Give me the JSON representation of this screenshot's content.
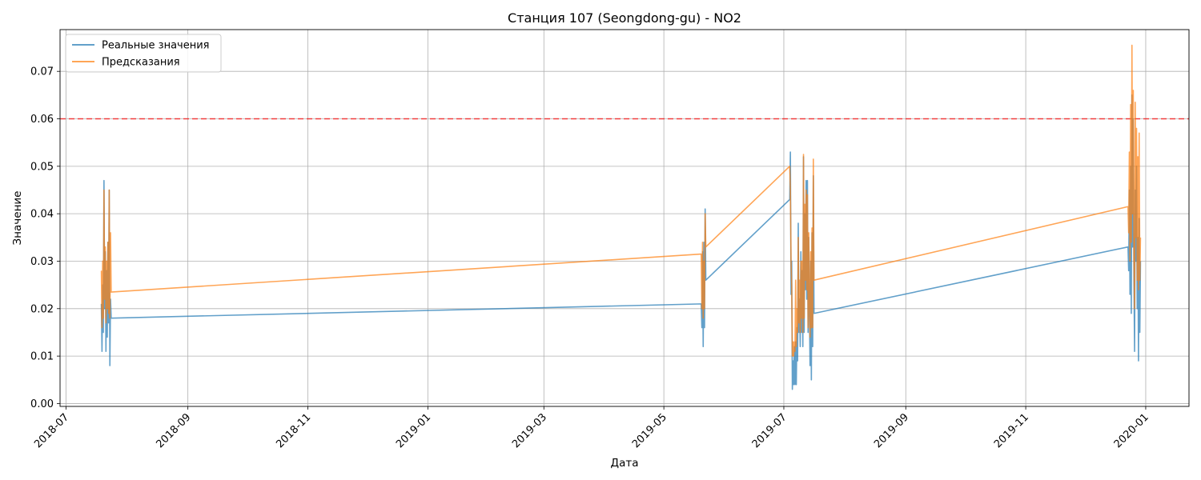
{
  "chart_data": {
    "type": "line",
    "title": "Станция 107 (Seongdong-gu) - NO2",
    "xlabel": "Дата",
    "ylabel": "Значение",
    "x_type": "date",
    "xlim": [
      "2018-06-28",
      "2020-01-23"
    ],
    "ylim": [
      -0.0006,
      0.0788
    ],
    "x_ticks": [
      "2018-07-01",
      "2018-09-01",
      "2018-11-01",
      "2019-01-01",
      "2019-03-01",
      "2019-05-01",
      "2019-07-01",
      "2019-09-01",
      "2019-11-01",
      "2020-01-01"
    ],
    "x_tick_labels": [
      "2018-07",
      "2018-09",
      "2018-11",
      "2019-01",
      "2019-03",
      "2019-05",
      "2019-07",
      "2019-09",
      "2019-11",
      "2020-01"
    ],
    "y_ticks": [
      0.0,
      0.01,
      0.02,
      0.03,
      0.04,
      0.05,
      0.06,
      0.07
    ],
    "y_tick_labels": [
      "0.00",
      "0.01",
      "0.02",
      "0.03",
      "0.04",
      "0.05",
      "0.06",
      "0.07"
    ],
    "grid": true,
    "legend_position": "upper-left",
    "threshold": {
      "value": 0.06,
      "color": "#ff0000",
      "style": "dashed"
    },
    "series": [
      {
        "name": "Реальные значения",
        "color": "#1f77b4",
        "points": [
          [
            "2018-07-19T00:00",
            0.021
          ],
          [
            "2018-07-19T08:00",
            0.011
          ],
          [
            "2018-07-19T16:00",
            0.025
          ],
          [
            "2018-07-20T00:00",
            0.015
          ],
          [
            "2018-07-20T08:00",
            0.047
          ],
          [
            "2018-07-20T16:00",
            0.02
          ],
          [
            "2018-07-21T00:00",
            0.032
          ],
          [
            "2018-07-21T08:00",
            0.011
          ],
          [
            "2018-07-21T16:00",
            0.028
          ],
          [
            "2018-07-22T00:00",
            0.014
          ],
          [
            "2018-07-22T08:00",
            0.034
          ],
          [
            "2018-07-22T16:00",
            0.017
          ],
          [
            "2018-07-23T00:00",
            0.045
          ],
          [
            "2018-07-23T08:00",
            0.008
          ],
          [
            "2018-07-23T16:00",
            0.022
          ],
          [
            "2018-07-24T00:00",
            0.018
          ],
          [
            "2019-05-20T00:00",
            0.021
          ],
          [
            "2019-05-20T08:00",
            0.016
          ],
          [
            "2019-05-20T16:00",
            0.032
          ],
          [
            "2019-05-21T00:00",
            0.012
          ],
          [
            "2019-05-21T08:00",
            0.034
          ],
          [
            "2019-05-21T16:00",
            0.016
          ],
          [
            "2019-05-22T00:00",
            0.041
          ],
          [
            "2019-05-22T08:00",
            0.026
          ],
          [
            "2019-07-04T00:00",
            0.043
          ],
          [
            "2019-07-04T08:00",
            0.053
          ],
          [
            "2019-07-04T16:00",
            0.023
          ],
          [
            "2019-07-05T00:00",
            0.03
          ],
          [
            "2019-07-05T08:00",
            0.003
          ],
          [
            "2019-07-05T16:00",
            0.009
          ],
          [
            "2019-07-06T00:00",
            0.004
          ],
          [
            "2019-07-06T08:00",
            0.012
          ],
          [
            "2019-07-06T16:00",
            0.004
          ],
          [
            "2019-07-07T00:00",
            0.013
          ],
          [
            "2019-07-07T08:00",
            0.004
          ],
          [
            "2019-07-07T16:00",
            0.016
          ],
          [
            "2019-07-08T00:00",
            0.009
          ],
          [
            "2019-07-08T08:00",
            0.038
          ],
          [
            "2019-07-08T16:00",
            0.015
          ],
          [
            "2019-07-09T00:00",
            0.022
          ],
          [
            "2019-07-09T08:00",
            0.012
          ],
          [
            "2019-07-09T16:00",
            0.032
          ],
          [
            "2019-07-10T00:00",
            0.015
          ],
          [
            "2019-07-10T08:00",
            0.028
          ],
          [
            "2019-07-10T16:00",
            0.012
          ],
          [
            "2019-07-11T00:00",
            0.052
          ],
          [
            "2019-07-11T08:00",
            0.015
          ],
          [
            "2019-07-11T16:00",
            0.04
          ],
          [
            "2019-07-12T00:00",
            0.024
          ],
          [
            "2019-07-12T08:00",
            0.047
          ],
          [
            "2019-07-12T16:00",
            0.022
          ],
          [
            "2019-07-13T00:00",
            0.047
          ],
          [
            "2019-07-13T08:00",
            0.015
          ],
          [
            "2019-07-13T16:00",
            0.035
          ],
          [
            "2019-07-14T00:00",
            0.02
          ],
          [
            "2019-07-14T08:00",
            0.008
          ],
          [
            "2019-07-14T16:00",
            0.03
          ],
          [
            "2019-07-15T00:00",
            0.005
          ],
          [
            "2019-07-15T08:00",
            0.036
          ],
          [
            "2019-07-15T16:00",
            0.012
          ],
          [
            "2019-07-16T00:00",
            0.048
          ],
          [
            "2019-07-16T08:00",
            0.019
          ],
          [
            "2019-12-23T00:00",
            0.033
          ],
          [
            "2019-12-23T08:00",
            0.028
          ],
          [
            "2019-12-23T16:00",
            0.045
          ],
          [
            "2019-12-24T00:00",
            0.023
          ],
          [
            "2019-12-24T08:00",
            0.05
          ],
          [
            "2019-12-24T16:00",
            0.019
          ],
          [
            "2019-12-25T00:00",
            0.065
          ],
          [
            "2019-12-25T08:00",
            0.033
          ],
          [
            "2019-12-25T16:00",
            0.06
          ],
          [
            "2019-12-26T00:00",
            0.026
          ],
          [
            "2019-12-26T08:00",
            0.011
          ],
          [
            "2019-12-26T16:00",
            0.045
          ],
          [
            "2019-12-27T00:00",
            0.03
          ],
          [
            "2019-12-27T08:00",
            0.05
          ],
          [
            "2019-12-27T16:00",
            0.02
          ],
          [
            "2019-12-28T00:00",
            0.035
          ],
          [
            "2019-12-28T08:00",
            0.009
          ],
          [
            "2019-12-28T16:00",
            0.039
          ],
          [
            "2019-12-29T00:00",
            0.015
          ],
          [
            "2019-12-29T08:00",
            0.03
          ]
        ]
      },
      {
        "name": "Предсказания",
        "color": "#ff7f0e",
        "points": [
          [
            "2018-07-19T00:00",
            0.028
          ],
          [
            "2018-07-19T08:00",
            0.016
          ],
          [
            "2018-07-19T16:00",
            0.03
          ],
          [
            "2018-07-20T00:00",
            0.018
          ],
          [
            "2018-07-20T08:00",
            0.045
          ],
          [
            "2018-07-20T16:00",
            0.022
          ],
          [
            "2018-07-21T00:00",
            0.033
          ],
          [
            "2018-07-21T08:00",
            0.017
          ],
          [
            "2018-07-21T16:00",
            0.03
          ],
          [
            "2018-07-22T00:00",
            0.02
          ],
          [
            "2018-07-22T08:00",
            0.034
          ],
          [
            "2018-07-22T16:00",
            0.019
          ],
          [
            "2018-07-23T00:00",
            0.045
          ],
          [
            "2018-07-23T08:00",
            0.018
          ],
          [
            "2018-07-23T16:00",
            0.036
          ],
          [
            "2018-07-24T00:00",
            0.0235
          ],
          [
            "2019-05-20T00:00",
            0.0315
          ],
          [
            "2019-05-20T08:00",
            0.02
          ],
          [
            "2019-05-20T16:00",
            0.034
          ],
          [
            "2019-05-21T00:00",
            0.018
          ],
          [
            "2019-05-21T08:00",
            0.03
          ],
          [
            "2019-05-21T16:00",
            0.02
          ],
          [
            "2019-05-22T00:00",
            0.04
          ],
          [
            "2019-05-22T08:00",
            0.033
          ],
          [
            "2019-07-04T00:00",
            0.05
          ],
          [
            "2019-07-04T08:00",
            0.045
          ],
          [
            "2019-07-04T16:00",
            0.03
          ],
          [
            "2019-07-05T00:00",
            0.025
          ],
          [
            "2019-07-05T08:00",
            0.01
          ],
          [
            "2019-07-05T16:00",
            0.013
          ],
          [
            "2019-07-06T00:00",
            0.01
          ],
          [
            "2019-07-06T08:00",
            0.013
          ],
          [
            "2019-07-06T16:00",
            0.011
          ],
          [
            "2019-07-07T00:00",
            0.026
          ],
          [
            "2019-07-07T08:00",
            0.012
          ],
          [
            "2019-07-07T16:00",
            0.02
          ],
          [
            "2019-07-08T00:00",
            0.015
          ],
          [
            "2019-07-08T08:00",
            0.035
          ],
          [
            "2019-07-08T16:00",
            0.017
          ],
          [
            "2019-07-09T00:00",
            0.026
          ],
          [
            "2019-07-09T08:00",
            0.015
          ],
          [
            "2019-07-09T16:00",
            0.03
          ],
          [
            "2019-07-10T00:00",
            0.018
          ],
          [
            "2019-07-10T08:00",
            0.03
          ],
          [
            "2019-07-10T16:00",
            0.015
          ],
          [
            "2019-07-11T00:00",
            0.0525
          ],
          [
            "2019-07-11T08:00",
            0.018
          ],
          [
            "2019-07-11T16:00",
            0.042
          ],
          [
            "2019-07-12T00:00",
            0.026
          ],
          [
            "2019-07-12T08:00",
            0.045
          ],
          [
            "2019-07-12T16:00",
            0.024
          ],
          [
            "2019-07-13T00:00",
            0.044
          ],
          [
            "2019-07-13T08:00",
            0.016
          ],
          [
            "2019-07-13T16:00",
            0.036
          ],
          [
            "2019-07-14T00:00",
            0.022
          ],
          [
            "2019-07-14T08:00",
            0.014
          ],
          [
            "2019-07-14T16:00",
            0.032
          ],
          [
            "2019-07-15T00:00",
            0.016
          ],
          [
            "2019-07-15T08:00",
            0.037
          ],
          [
            "2019-07-15T16:00",
            0.016
          ],
          [
            "2019-07-16T00:00",
            0.0515
          ],
          [
            "2019-07-16T08:00",
            0.026
          ],
          [
            "2019-12-23T00:00",
            0.0415
          ],
          [
            "2019-12-23T08:00",
            0.036
          ],
          [
            "2019-12-23T16:00",
            0.053
          ],
          [
            "2019-12-24T00:00",
            0.03
          ],
          [
            "2019-12-24T08:00",
            0.063
          ],
          [
            "2019-12-24T16:00",
            0.034
          ],
          [
            "2019-12-25T00:00",
            0.0755
          ],
          [
            "2019-12-25T08:00",
            0.04
          ],
          [
            "2019-12-25T16:00",
            0.066
          ],
          [
            "2019-12-26T00:00",
            0.03
          ],
          [
            "2019-12-26T08:00",
            0.02
          ],
          [
            "2019-12-26T16:00",
            0.0635
          ],
          [
            "2019-12-27T00:00",
            0.035
          ],
          [
            "2019-12-27T08:00",
            0.058
          ],
          [
            "2019-12-27T16:00",
            0.026
          ],
          [
            "2019-12-28T00:00",
            0.052
          ],
          [
            "2019-12-28T08:00",
            0.024
          ],
          [
            "2019-12-28T16:00",
            0.057
          ],
          [
            "2019-12-29T00:00",
            0.026
          ],
          [
            "2019-12-29T08:00",
            0.035
          ]
        ]
      }
    ]
  }
}
